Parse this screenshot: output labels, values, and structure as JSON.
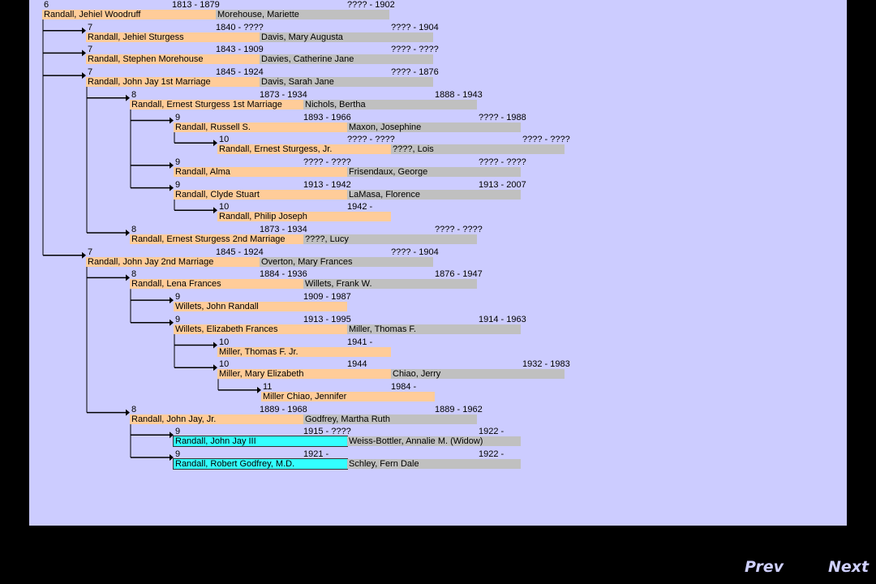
{
  "rows": [
    {
      "gen": "6",
      "name": "Randall, Jehiel Woodruff",
      "dates": "1813 - 1879",
      "spouse": "Morehouse, Mariette",
      "spouse_dates": "???? - 1902",
      "level": 0
    },
    {
      "gen": "7",
      "name": "Randall, Jehiel Sturgess",
      "dates": "1840 - ????",
      "spouse": "Davis, Mary Augusta",
      "spouse_dates": "???? - 1904",
      "level": 1
    },
    {
      "gen": "7",
      "name": "Randall, Stephen Morehouse",
      "dates": "1843 - 1909",
      "spouse": "Davies, Catherine Jane",
      "spouse_dates": "???? - ????",
      "level": 1
    },
    {
      "gen": "7",
      "name": "Randall, John Jay 1st Marriage",
      "dates": "1845 - 1924",
      "spouse": "Davis, Sarah Jane",
      "spouse_dates": "???? - 1876",
      "level": 1
    },
    {
      "gen": "8",
      "name": "Randall, Ernest Sturgess 1st Marriage",
      "dates": "1873 - 1934",
      "spouse": "Nichols, Bertha",
      "spouse_dates": "1888 - 1943",
      "level": 2
    },
    {
      "gen": "9",
      "name": "Randall, Russell S.",
      "dates": "1893 - 1966",
      "spouse": "Maxon, Josephine",
      "spouse_dates": "???? - 1988",
      "level": 3
    },
    {
      "gen": "10",
      "name": "Randall, Ernest Sturgess, Jr.",
      "dates": "???? - ????",
      "spouse": "????, Lois",
      "spouse_dates": "???? - ????",
      "level": 4
    },
    {
      "gen": "9",
      "name": "Randall, Alma",
      "dates": "???? - ????",
      "spouse": "Frisendaux, George",
      "spouse_dates": "???? - ????",
      "level": 3
    },
    {
      "gen": "9",
      "name": "Randall, Clyde Stuart",
      "dates": "1913 - 1942",
      "spouse": "LaMasa, Florence",
      "spouse_dates": "1913 - 2007",
      "level": 3
    },
    {
      "gen": "10",
      "name": "Randall, Philip Joseph",
      "dates": "1942 -",
      "spouse": "",
      "spouse_dates": "",
      "level": 4
    },
    {
      "gen": "8",
      "name": "Randall, Ernest Sturgess 2nd Marriage",
      "dates": "1873 - 1934",
      "spouse": "????, Lucy",
      "spouse_dates": "???? - ????",
      "level": 2
    },
    {
      "gen": "7",
      "name": "Randall, John Jay 2nd Marriage",
      "dates": "1845 - 1924",
      "spouse": "Overton, Mary Frances",
      "spouse_dates": "???? - 1904",
      "level": 1
    },
    {
      "gen": "8",
      "name": "Randall, Lena Frances",
      "dates": "1884 - 1936",
      "spouse": "Willets, Frank W.",
      "spouse_dates": "1876 - 1947",
      "level": 2
    },
    {
      "gen": "9",
      "name": "Willets, John Randall",
      "dates": "1909 - 1987",
      "spouse": "",
      "spouse_dates": "",
      "level": 3
    },
    {
      "gen": "9",
      "name": "Willets, Elizabeth Frances",
      "dates": "1913 - 1995",
      "spouse": "Miller, Thomas F.",
      "spouse_dates": "1914 - 1963",
      "level": 3
    },
    {
      "gen": "10",
      "name": "Miller, Thomas F. Jr.",
      "dates": "1941 -",
      "spouse": "",
      "spouse_dates": "",
      "level": 4
    },
    {
      "gen": "10",
      "name": "Miller, Mary Elizabeth",
      "dates": "1944",
      "spouse": "Chiao, Jerry",
      "spouse_dates": "1932 - 1983",
      "level": 4
    },
    {
      "gen": "11",
      "name": "Miller Chiao, Jennifer",
      "dates": "1984 -",
      "spouse": "",
      "spouse_dates": "",
      "level": 5
    },
    {
      "gen": "8",
      "name": "Randall, John Jay, Jr.",
      "dates": "1889 - 1968",
      "spouse": "Godfrey, Martha Ruth",
      "spouse_dates": "1889 - 1962",
      "level": 2
    },
    {
      "gen": "9",
      "name": "Randall, John Jay III",
      "dates": "1915 - ????",
      "spouse": "Weiss-Bottler, Annalie M. (Widow)",
      "spouse_dates": "1922 -",
      "level": 3,
      "highlight": true
    },
    {
      "gen": "9",
      "name": "Randall, Robert Godfrey, M.D.",
      "dates": "1921 -",
      "spouse": "Schley, Fern Dale",
      "spouse_dates": "1922 -",
      "level": 3,
      "highlight": true
    }
  ],
  "nav": {
    "prev": "Prev",
    "next": "Next"
  },
  "colors": {
    "background": "#ccccff",
    "name_fill": "#ffcc99",
    "spouse_fill": "#c0c0c0",
    "highlight_fill": "#33ffff",
    "page": "#000000"
  }
}
